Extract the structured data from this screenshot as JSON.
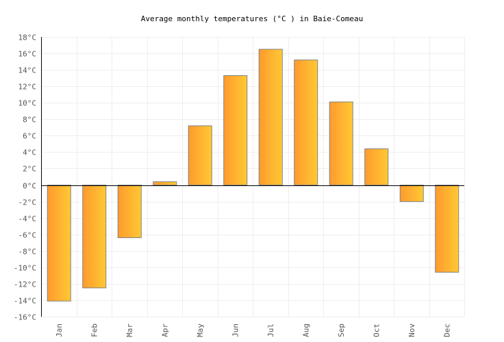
{
  "chart_data": {
    "type": "bar",
    "title": "Average monthly temperatures (°C ) in Baie-Comeau",
    "xlabel": "",
    "ylabel": "",
    "categories": [
      "Jan",
      "Feb",
      "Mar",
      "Apr",
      "May",
      "Jun",
      "Jul",
      "Aug",
      "Sep",
      "Oct",
      "Nov",
      "Dec"
    ],
    "values": [
      -14.1,
      -12.5,
      -6.4,
      0.4,
      7.2,
      13.3,
      16.5,
      15.2,
      10.1,
      4.4,
      -2.0,
      -10.6
    ],
    "ylim": [
      -16,
      18
    ],
    "yticks": [
      "18°C",
      "16°C",
      "14°C",
      "12°C",
      "10°C",
      "8°C",
      "6°C",
      "4°C",
      "2°C",
      "0°C",
      "-2°C",
      "-4°C",
      "-6°C",
      "-8°C",
      "-10°C",
      "-12°C",
      "-14°C",
      "-16°C"
    ],
    "grid": true,
    "legend": "none",
    "colors": {
      "bar_start": "#ff9a2e",
      "bar_end": "#ffc933",
      "bar_border": "#808080",
      "grid": "#eeeeee"
    }
  }
}
